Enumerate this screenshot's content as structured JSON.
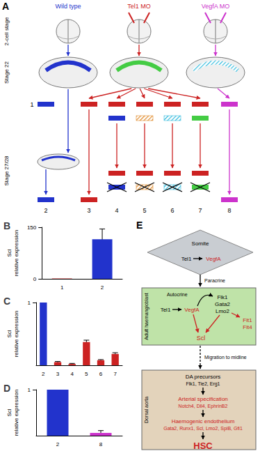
{
  "panel_a": {
    "label": "A",
    "columns": [
      {
        "text": "Wild type",
        "color": "#2233cc",
        "injected": false
      },
      {
        "text": "Tel1 MO",
        "color": "#cc2222",
        "injected": true
      },
      {
        "text": "VegfA MO",
        "color": "#cc33cc",
        "injected": true
      }
    ],
    "rows": [
      "2-cell stage",
      "Stage 22",
      "Stage 27/28"
    ],
    "stage22_bands": [
      {
        "color": "#2233cc",
        "hatched": false
      },
      {
        "color": "#44cc44",
        "hatched": false
      },
      {
        "color": "#33bbdd",
        "hatched": true
      }
    ],
    "lanes": [
      {
        "label": "1",
        "column": 0,
        "top": [
          {
            "color": "#2233cc"
          }
        ],
        "bottom": []
      },
      {
        "label": "2",
        "column": 0,
        "top": [],
        "bottom": [
          {
            "color": "#2233cc"
          }
        ]
      },
      {
        "label": "3",
        "column": 1,
        "top": [
          {
            "color": "#cc2222"
          }
        ],
        "bottom": [
          {
            "color": "#cc2222"
          }
        ]
      },
      {
        "label": "4",
        "column": 1,
        "top": [
          {
            "color": "#cc2222"
          },
          {
            "color": "#2233cc"
          }
        ],
        "bottom": [
          {
            "color": "#cc2222"
          },
          {
            "color": "#2233cc",
            "crossed": true
          }
        ]
      },
      {
        "label": "5",
        "column": 1,
        "top": [
          {
            "color": "#cc2222"
          },
          {
            "color": "#e08a2a",
            "hatched": true
          }
        ],
        "bottom": [
          {
            "color": "#cc2222"
          },
          {
            "color": "#e08a2a",
            "hatched": true,
            "crossed": true
          }
        ]
      },
      {
        "label": "6",
        "column": 1,
        "top": [
          {
            "color": "#cc2222"
          },
          {
            "color": "#33bbdd",
            "hatched": true
          }
        ],
        "bottom": [
          {
            "color": "#cc2222"
          },
          {
            "color": "#33bbdd",
            "hatched": true,
            "crossed": true
          }
        ]
      },
      {
        "label": "7",
        "column": 1,
        "top": [
          {
            "color": "#cc2222"
          },
          {
            "color": "#44cc44"
          }
        ],
        "bottom": [
          {
            "color": "#cc2222"
          },
          {
            "color": "#44cc44",
            "crossed": true
          }
        ]
      },
      {
        "label": "8",
        "column": 2,
        "top": [
          {
            "color": "#cc33cc"
          }
        ],
        "bottom": [
          {
            "color": "#cc33cc"
          }
        ]
      }
    ]
  },
  "chart_data": [
    {
      "type": "bar",
      "title": "B",
      "y_label": "Scl relative expression",
      "categories": [
        "1",
        "2"
      ],
      "values": [
        1,
        115
      ],
      "errors": [
        0,
        30
      ],
      "colors": [
        "#cc2222",
        "#2233cc"
      ],
      "ylim": [
        0,
        150
      ],
      "yticks": [
        0,
        150
      ],
      "grid": false
    },
    {
      "type": "bar",
      "title": "C",
      "y_label": "Scl relative expression",
      "categories": [
        "2",
        "3",
        "4",
        "5",
        "6",
        "7"
      ],
      "values": [
        1,
        0.05,
        0.02,
        0.37,
        0.08,
        0.18
      ],
      "errors": [
        0,
        0.01,
        0.01,
        0.03,
        0.01,
        0.02
      ],
      "colors": [
        "#2233cc",
        "#cc2222",
        "#cc2222",
        "#cc2222",
        "#cc2222",
        "#cc2222"
      ],
      "ylim": [
        0,
        1
      ],
      "yticks": [
        1
      ],
      "grid": false
    },
    {
      "type": "bar",
      "title": "D",
      "y_label": "Scl relative expression",
      "categories": [
        "2",
        "8"
      ],
      "values": [
        1,
        0.06
      ],
      "errors": [
        0,
        0.05
      ],
      "colors": [
        "#2233cc",
        "#cc33cc"
      ],
      "ylim": [
        0,
        1
      ],
      "yticks": [
        1
      ],
      "grid": false
    }
  ],
  "panel_e": {
    "label": "E",
    "highlight_color": "#cc2222",
    "somite": {
      "title": "Somite",
      "from": "Tel1",
      "to": "VegfA",
      "color": "#c9cdd2"
    },
    "paracrine": "Paracrine",
    "haemangioblast": {
      "title": "Adult haemangioblast",
      "from": "Tel1",
      "to": "VegfA",
      "autocrine": "Autocrine",
      "factors": [
        "Flk1",
        "Gata2",
        "Lmo2"
      ],
      "receptors": [
        "Flt1",
        "Flt4"
      ],
      "target": "Scl",
      "color": "#bfe3a8"
    },
    "migration": "Migration to midline",
    "dorsal_aorta": {
      "title": "Dorsal aorta",
      "color": "#e3d3bb",
      "steps": [
        {
          "title": "DA precursors",
          "genes": "Flk1, Tie2, Erg1",
          "highlight": false
        },
        {
          "title": "Arterial specification",
          "genes": "Notch4, Dll4, EphrinB2",
          "highlight": true
        },
        {
          "title": "Haemogenic endothelium",
          "genes": "Gata2, Runx1, Scl, Lmo2, SpiB, Gfi1",
          "highlight": true
        }
      ],
      "result": "HSC"
    }
  }
}
